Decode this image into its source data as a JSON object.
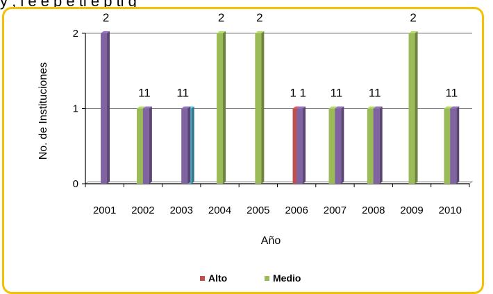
{
  "header_text": "y , l e    e  p     e  ti e    p     ti   g",
  "chart_data": {
    "type": "bar",
    "categories": [
      "2001",
      "2002",
      "2003",
      "2004",
      "2005",
      "2006",
      "2007",
      "2008",
      "2009",
      "2010"
    ],
    "series": [
      {
        "name": "Alto",
        "color": "#c0504d",
        "values": [
          0,
          0,
          0,
          0,
          0,
          1,
          0,
          0,
          0,
          0
        ]
      },
      {
        "name": "Medio",
        "color": "#9bbb59",
        "values": [
          0,
          1,
          0,
          2,
          2,
          0,
          1,
          1,
          2,
          1
        ]
      },
      {
        "color": "#4bacc6",
        "values": [
          0,
          0,
          1,
          0,
          0,
          0,
          0,
          0,
          0,
          0
        ]
      },
      {
        "color": "#8064a2",
        "values": [
          2,
          1,
          1,
          0,
          0,
          1,
          1,
          1,
          0,
          1
        ]
      }
    ],
    "data_labels": [
      "2",
      "11",
      "11",
      "2",
      "2",
      "1 1",
      "11",
      "11",
      "2",
      "11"
    ],
    "xlabel": "Año",
    "ylabel": "No. de Instituciones",
    "yticks": [
      "0",
      "1",
      "2"
    ],
    "ylim": [
      0,
      2
    ],
    "grid": true,
    "legend_position": "bottom",
    "legend": [
      "Alto",
      "Medio"
    ]
  }
}
